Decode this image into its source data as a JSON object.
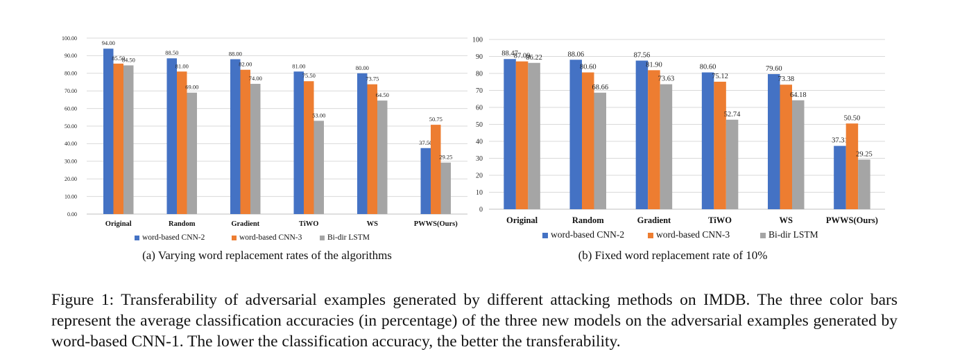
{
  "chart_data": [
    {
      "type": "bar",
      "categories": [
        "Original",
        "Random",
        "Gradient",
        "TiWO",
        "WS",
        "PWWS(Ours)"
      ],
      "series": [
        {
          "name": "word-based CNN-2",
          "color": "#4472C4",
          "values": [
            94.0,
            88.5,
            88.0,
            81.0,
            80.0,
            37.5
          ]
        },
        {
          "name": "word-based CNN-3",
          "color": "#ED7D31",
          "values": [
            85.5,
            81.0,
            82.0,
            75.5,
            73.75,
            50.75
          ]
        },
        {
          "name": "Bi-dir LSTM",
          "color": "#A5A5A5",
          "values": [
            84.5,
            69.0,
            74.0,
            53.0,
            64.5,
            29.25
          ]
        }
      ],
      "value_labels": [
        [
          "94.00",
          "88.50",
          "88.00",
          "81.00",
          "80.00",
          "37.50"
        ],
        [
          "85.50",
          "81.00",
          "82.00",
          "75.50",
          "73.75",
          "50.75"
        ],
        [
          "84.50",
          "69.00",
          "74.00",
          "53.00",
          "64.50",
          "29.25"
        ]
      ],
      "y_ticks": [
        "0.00",
        "10.00",
        "20.00",
        "30.00",
        "40.00",
        "50.00",
        "60.00",
        "70.00",
        "80.00",
        "90.00",
        "100.00"
      ],
      "ylim": [
        0,
        100
      ],
      "grid": true,
      "legend": "bottom",
      "title": "",
      "xlabel": "",
      "ylabel": "",
      "caption": "(a) Varying word replacement rates of the algorithms"
    },
    {
      "type": "bar",
      "categories": [
        "Original",
        "Random",
        "Gradient",
        "TiWO",
        "WS",
        "PWWS(Ours)"
      ],
      "series": [
        {
          "name": "word-based CNN-2",
          "color": "#4472C4",
          "values": [
            88.47,
            88.06,
            87.56,
            80.6,
            79.6,
            37.31
          ]
        },
        {
          "name": "word-based CNN-3",
          "color": "#ED7D31",
          "values": [
            87.09,
            80.6,
            81.9,
            75.12,
            73.38,
            50.5
          ]
        },
        {
          "name": "Bi-dir LSTM",
          "color": "#A5A5A5",
          "values": [
            86.22,
            68.66,
            73.63,
            52.74,
            64.18,
            29.25
          ]
        }
      ],
      "value_labels": [
        [
          "88.47",
          "88.06",
          "87.56",
          "80.60",
          "79.60",
          "37.31"
        ],
        [
          "87.09",
          "80.60",
          "81.90",
          "75.12",
          "73.38",
          "50.50"
        ],
        [
          "86.22",
          "68.66",
          "73.63",
          "52.74",
          "64.18",
          "29.25"
        ]
      ],
      "y_ticks": [
        "0",
        "10",
        "20",
        "30",
        "40",
        "50",
        "60",
        "70",
        "80",
        "90",
        "100"
      ],
      "ylim": [
        0,
        100
      ],
      "grid": true,
      "legend": "bottom",
      "title": "",
      "xlabel": "",
      "ylabel": "",
      "caption": "(b) Fixed word replacement rate of 10%"
    }
  ],
  "figure_caption": "Figure 1: Transferability of adversarial examples generated by different attacking methods on IMDB. The three color bars represent the average classification accuracies (in percentage) of the three new models on the adversarial examples generated by word-based CNN-1. The lower the classification accuracy, the better the transferability."
}
